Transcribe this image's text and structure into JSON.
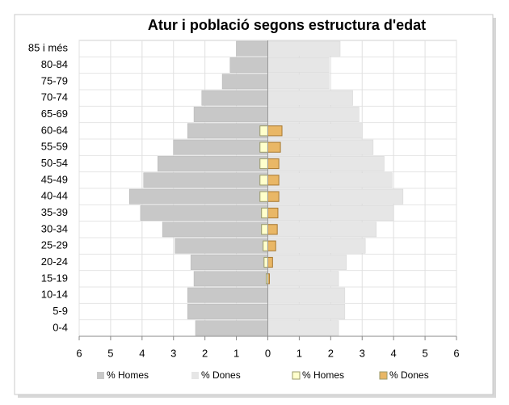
{
  "chart_data": {
    "type": "pyramid",
    "title": "Atur i població segons estructura d'edat",
    "categories": [
      "85 i més",
      "80-84",
      "75-79",
      "70-74",
      "65-69",
      "60-64",
      "55-59",
      "50-54",
      "45-49",
      "40-44",
      "35-39",
      "30-34",
      "25-29",
      "20-24",
      "15-19",
      "10-14",
      "5-9",
      "0-4"
    ],
    "series": [
      {
        "name": "% Homes",
        "color": "#c8c8c8",
        "values": [
          -1.0,
          -1.2,
          -1.45,
          -2.1,
          -2.35,
          -2.55,
          -3.0,
          -3.5,
          -3.95,
          -4.4,
          -4.05,
          -3.35,
          -2.95,
          -2.45,
          -2.35,
          -2.55,
          -2.55,
          -2.3
        ]
      },
      {
        "name": "% Dones",
        "color": "#e6e6e6",
        "values": [
          2.3,
          1.95,
          1.95,
          2.7,
          2.9,
          3.0,
          3.35,
          3.7,
          3.95,
          4.3,
          4.0,
          3.45,
          3.1,
          2.5,
          2.25,
          2.45,
          2.45,
          2.25
        ]
      },
      {
        "name": "% Homes",
        "color": "#ffffcc",
        "values": [
          null,
          null,
          null,
          null,
          null,
          -0.25,
          -0.25,
          -0.25,
          -0.25,
          -0.25,
          -0.2,
          -0.2,
          -0.15,
          -0.12,
          -0.05,
          null,
          null,
          null
        ]
      },
      {
        "name": "% Dones",
        "color": "#e9b766",
        "values": [
          null,
          null,
          null,
          null,
          null,
          0.45,
          0.4,
          0.35,
          0.35,
          0.35,
          0.32,
          0.3,
          0.25,
          0.15,
          0.05,
          null,
          null,
          null
        ]
      }
    ],
    "xlim": [
      -6,
      6
    ],
    "xticks": [
      {
        "value": -6,
        "label": "6"
      },
      {
        "value": -5,
        "label": "5"
      },
      {
        "value": -4,
        "label": "4"
      },
      {
        "value": -3,
        "label": "3"
      },
      {
        "value": -2,
        "label": "2"
      },
      {
        "value": -1,
        "label": "1"
      },
      0,
      1,
      2,
      3,
      4,
      5,
      6
    ],
    "grid": true,
    "legend": "bottom"
  }
}
